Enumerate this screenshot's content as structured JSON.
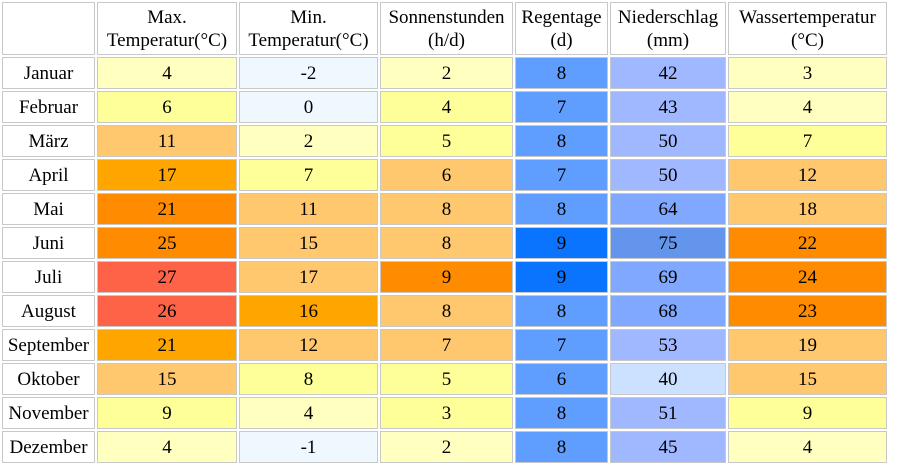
{
  "chart_data": {
    "type": "table",
    "columns": [
      {
        "line1": "Max.",
        "line2": "Temperatur(°C)"
      },
      {
        "line1": "Min.",
        "line2": "Temperatur(°C)"
      },
      {
        "line1": "Sonnenstunden",
        "line2": "(h/d)"
      },
      {
        "line1": "Regentage",
        "line2": "(d)"
      },
      {
        "line1": "Niederschlag",
        "line2": "(mm)"
      },
      {
        "line1": "Wassertemperatur",
        "line2": "(°C)"
      }
    ],
    "rows": [
      {
        "month": "Januar",
        "values": [
          "4",
          "-2",
          "2",
          "8",
          "42",
          "3"
        ]
      },
      {
        "month": "Februar",
        "values": [
          "6",
          "0",
          "4",
          "7",
          "43",
          "4"
        ]
      },
      {
        "month": "März",
        "values": [
          "11",
          "2",
          "5",
          "8",
          "50",
          "7"
        ]
      },
      {
        "month": "April",
        "values": [
          "17",
          "7",
          "6",
          "7",
          "50",
          "12"
        ]
      },
      {
        "month": "Mai",
        "values": [
          "21",
          "11",
          "8",
          "8",
          "64",
          "18"
        ]
      },
      {
        "month": "Juni",
        "values": [
          "25",
          "15",
          "8",
          "9",
          "75",
          "22"
        ]
      },
      {
        "month": "Juli",
        "values": [
          "27",
          "17",
          "9",
          "9",
          "69",
          "24"
        ]
      },
      {
        "month": "August",
        "values": [
          "26",
          "16",
          "8",
          "8",
          "68",
          "23"
        ]
      },
      {
        "month": "September",
        "values": [
          "21",
          "12",
          "7",
          "7",
          "53",
          "19"
        ]
      },
      {
        "month": "Oktober",
        "values": [
          "15",
          "8",
          "5",
          "6",
          "40",
          "15"
        ]
      },
      {
        "month": "November",
        "values": [
          "9",
          "4",
          "3",
          "8",
          "51",
          "9"
        ]
      },
      {
        "month": "Dezember",
        "values": [
          "4",
          "-1",
          "2",
          "8",
          "45",
          "4"
        ]
      }
    ],
    "cell_colors": [
      [
        "#ffffc0",
        "#f0f8ff",
        "#ffffc0",
        "#5f9eff",
        "#a0b8ff",
        "#ffffc0"
      ],
      [
        "#ffff99",
        "#f0f8ff",
        "#ffff99",
        "#5f9eff",
        "#a0b8ff",
        "#ffffc0"
      ],
      [
        "#ffc86e",
        "#ffffc0",
        "#ffff99",
        "#5f9eff",
        "#a0b8ff",
        "#ffff99"
      ],
      [
        "#ffa500",
        "#ffff99",
        "#ffc86e",
        "#5f9eff",
        "#a0b8ff",
        "#ffc86e"
      ],
      [
        "#ff8c00",
        "#ffc86e",
        "#ffc86e",
        "#5f9eff",
        "#80a8ff",
        "#ffc86e"
      ],
      [
        "#ff8c00",
        "#ffc86e",
        "#ffc86e",
        "#0a74ff",
        "#6495ed",
        "#ff8c00"
      ],
      [
        "#ff6347",
        "#ffc86e",
        "#ff8c00",
        "#0a74ff",
        "#80a8ff",
        "#ff8c00"
      ],
      [
        "#ff6347",
        "#ffa500",
        "#ffc86e",
        "#5f9eff",
        "#80a8ff",
        "#ff8c00"
      ],
      [
        "#ffa500",
        "#ffc86e",
        "#ffc86e",
        "#5f9eff",
        "#a0b8ff",
        "#ffc86e"
      ],
      [
        "#ffc86e",
        "#ffff99",
        "#ffff99",
        "#5f9eff",
        "#cce0ff",
        "#ffc86e"
      ],
      [
        "#ffff99",
        "#ffffc0",
        "#ffff99",
        "#5f9eff",
        "#a0b8ff",
        "#ffff99"
      ],
      [
        "#ffffc0",
        "#f0f8ff",
        "#ffffc0",
        "#5f9eff",
        "#a0b8ff",
        "#ffffc0"
      ]
    ]
  }
}
